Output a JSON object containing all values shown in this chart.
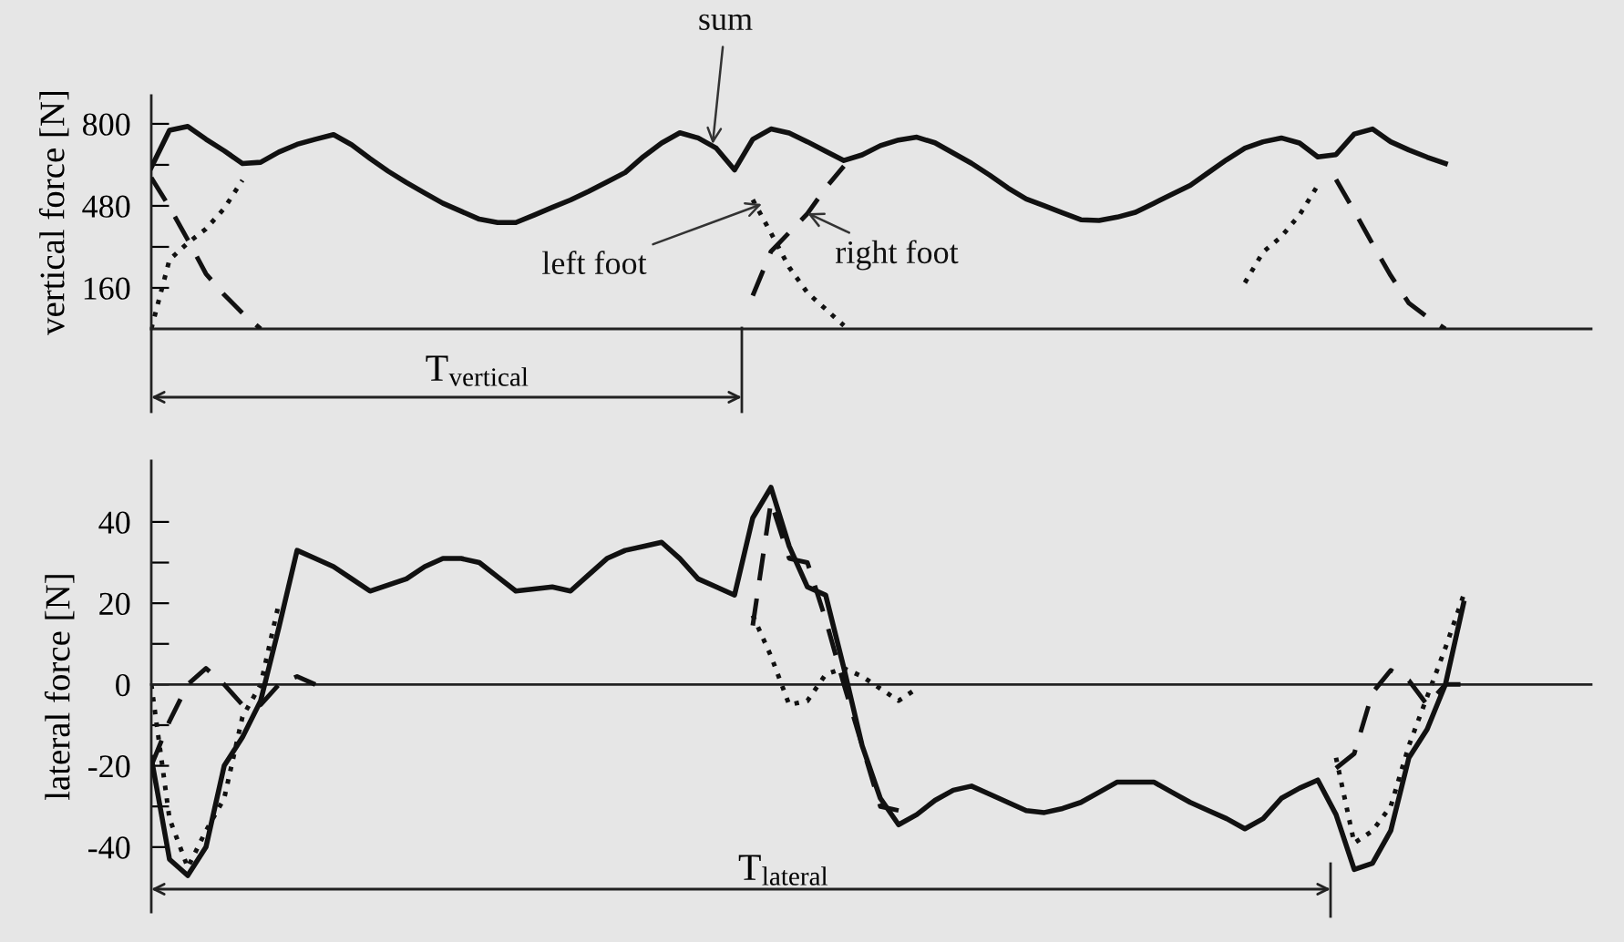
{
  "chart_data": [
    {
      "type": "line",
      "ylabel": "vertical force [N]",
      "tick_labels": "y",
      "ylim": [
        0,
        910
      ],
      "yticks": [
        160,
        {
          "value": 320,
          "label": null
        },
        480,
        {
          "value": 640,
          "label": null
        },
        800
      ],
      "categories": [
        null,
        null,
        null,
        null,
        null,
        null,
        null,
        null,
        null,
        null,
        null,
        null,
        null,
        null,
        null,
        null,
        null,
        null,
        null,
        null,
        null,
        null,
        null,
        null,
        null,
        null,
        null,
        null,
        null,
        null,
        null,
        null,
        null,
        null,
        null,
        null,
        null,
        null,
        null,
        null,
        null,
        null,
        null,
        null,
        null,
        null,
        null,
        null,
        null,
        null,
        null,
        null,
        null,
        null,
        null,
        null,
        null,
        null,
        null,
        null,
        null,
        null,
        null,
        null,
        null,
        null,
        null,
        null,
        null,
        null,
        null,
        null
      ],
      "annotations": [
        "T$_{vertical}$"
      ],
      "series": [
        {
          "name": "sum",
          "color": "#111111",
          "line_style": "solid",
          "values": [
            630,
            775,
            790,
            740,
            695,
            645,
            650,
            690,
            720,
            740,
            758,
            718,
            665,
            615,
            571,
            530,
            490,
            459,
            428,
            415,
            415,
            444,
            474,
            503,
            537,
            573,
            610,
            672,
            725,
            765,
            745,
            705,
            620,
            740,
            780,
            764,
            730,
            693,
            657,
            679,
            715,
            737,
            748,
            726,
            686,
            646,
            600,
            550,
            507,
            480,
            453,
            426,
            423,
            436,
            455,
            490,
            525,
            560,
            610,
            660,
            705,
            730,
            745,
            725,
            671,
            680,
            760,
            780,
            730,
            698,
            670,
            645
          ]
        },
        {
          "name": "left foot",
          "color": "#111111",
          "line_style": "dotted",
          "values": [
            0,
            270,
            335,
            390,
            470,
            580,
            null,
            null,
            null,
            null,
            null,
            null,
            null,
            null,
            null,
            null,
            null,
            null,
            null,
            null,
            null,
            null,
            null,
            null,
            null,
            null,
            null,
            null,
            null,
            null,
            null,
            null,
            null,
            504,
            374,
            240,
            141,
            77,
            13,
            null,
            null,
            null,
            null,
            null,
            null,
            null,
            null,
            null,
            null,
            null,
            null,
            null,
            null,
            null,
            null,
            null,
            null,
            null,
            null,
            null,
            180,
            300,
            360,
            445,
            560,
            null,
            null,
            null,
            null,
            null,
            null,
            null
          ]
        },
        {
          "name": "right foot",
          "color": "#111111",
          "line_style": "dashed",
          "values": [
            590,
            475,
            348,
            215,
            133,
            62,
            0,
            null,
            null,
            null,
            null,
            null,
            null,
            null,
            null,
            null,
            null,
            null,
            null,
            null,
            null,
            null,
            null,
            null,
            null,
            null,
            null,
            null,
            null,
            null,
            null,
            null,
            null,
            130,
            302,
            376,
            450,
            550,
            635,
            null,
            null,
            null,
            null,
            null,
            null,
            null,
            null,
            null,
            null,
            null,
            null,
            null,
            null,
            null,
            null,
            null,
            null,
            null,
            null,
            null,
            null,
            null,
            null,
            null,
            null,
            583,
            460,
            332,
            208,
            100,
            47,
            0
          ]
        }
      ]
    },
    {
      "type": "line",
      "ylabel": "lateral force [N]",
      "tick_labels": "y",
      "ylim": [
        -56,
        55
      ],
      "yticks": [
        -40,
        {
          "value": -30,
          "label": null
        },
        -20,
        {
          "value": -10,
          "label": null
        },
        0,
        {
          "value": 10,
          "label": null
        },
        20,
        {
          "value": 30,
          "label": null
        },
        40
      ],
      "categories": [
        null,
        null,
        null,
        null,
        null,
        null,
        null,
        null,
        null,
        null,
        null,
        null,
        null,
        null,
        null,
        null,
        null,
        null,
        null,
        null,
        null,
        null,
        null,
        null,
        null,
        null,
        null,
        null,
        null,
        null,
        null,
        null,
        null,
        null,
        null,
        null,
        null,
        null,
        null,
        null,
        null,
        null,
        null,
        null,
        null,
        null,
        null,
        null,
        null,
        null,
        null,
        null,
        null,
        null,
        null,
        null,
        null,
        null,
        null,
        null,
        null,
        null,
        null,
        null,
        null,
        null,
        null,
        null,
        null,
        null,
        null,
        null,
        null
      ],
      "annotations": [
        "T$_{lateral}$"
      ],
      "series": [
        {
          "color": "#111111",
          "line_style": "dotted",
          "values": [
            0,
            -33,
            -45,
            -36,
            -28,
            -8,
            0,
            20,
            null,
            null,
            null,
            null,
            null,
            null,
            null,
            null,
            null,
            null,
            null,
            null,
            null,
            null,
            null,
            null,
            null,
            null,
            null,
            null,
            null,
            null,
            null,
            null,
            null,
            17,
            7,
            -5,
            -4,
            2.5,
            4,
            2,
            -1,
            -4,
            -1,
            null,
            null,
            null,
            null,
            null,
            null,
            null,
            null,
            null,
            null,
            null,
            null,
            null,
            null,
            null,
            null,
            null,
            null,
            null,
            null,
            null,
            null,
            -18,
            -39,
            -36,
            -30,
            -15,
            -3,
            9,
            22
          ]
        },
        {
          "color": "#111111",
          "line_style": "dashed",
          "values": [
            -20,
            -9,
            0,
            4,
            0,
            -5,
            -5,
            0,
            2,
            0,
            null,
            null,
            null,
            null,
            null,
            null,
            null,
            null,
            null,
            null,
            null,
            null,
            null,
            null,
            null,
            null,
            null,
            null,
            null,
            null,
            null,
            null,
            null,
            14.5,
            45,
            31,
            30,
            16,
            0,
            -15,
            -30,
            -31,
            null,
            null,
            null,
            null,
            null,
            null,
            null,
            null,
            null,
            null,
            null,
            null,
            null,
            null,
            null,
            null,
            null,
            null,
            null,
            null,
            null,
            null,
            null,
            -20.6,
            -17,
            -2,
            3.5,
            1,
            -5,
            0,
            0
          ]
        },
        {
          "color": "#111111",
          "line_style": "solid",
          "values": [
            -18,
            -43,
            -47,
            -40,
            -20,
            -13,
            -4,
            14,
            33,
            31,
            29,
            26,
            23,
            24.5,
            26,
            29,
            31,
            31,
            30,
            26.5,
            23,
            23.5,
            24,
            23,
            27,
            31,
            33,
            34,
            35,
            31,
            26,
            24,
            22,
            41,
            48.5,
            34,
            24,
            22,
            4,
            -15,
            -28,
            -34.5,
            -32,
            -28.5,
            -26,
            -25,
            -27,
            -29,
            -31,
            -31.5,
            -30.5,
            -29,
            -26.5,
            -24,
            -24,
            -24,
            -26.5,
            -29,
            -31,
            -33,
            -35.5,
            -33,
            -28,
            -25.5,
            -23.5,
            -32,
            -45.5,
            -44,
            -36,
            -18,
            -11,
            0,
            20
          ]
        }
      ]
    }
  ]
}
